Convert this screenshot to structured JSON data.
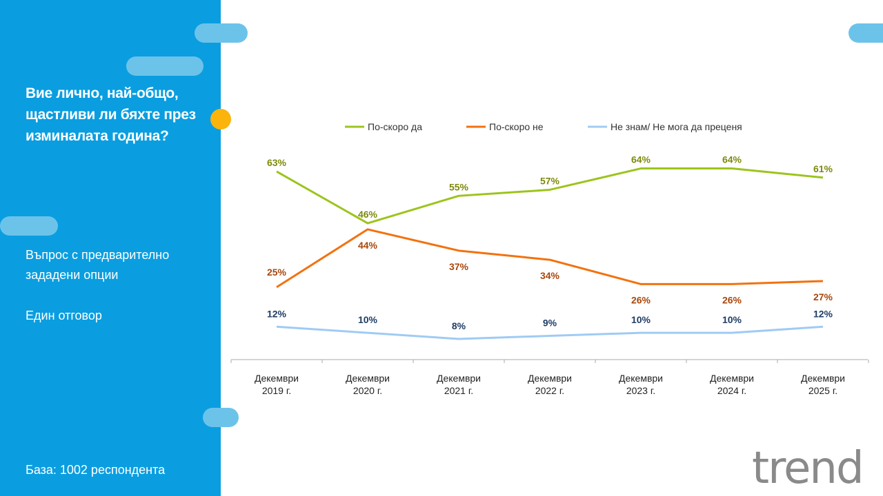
{
  "sidebar": {
    "question": "Вие лично, най-общо, щастливи ли бяхте през изминалата година?",
    "note1": "Въпрос с предварително зададени опции",
    "note2": "Един отговор",
    "base": "База:  1002 респондента"
  },
  "logo": "trend",
  "colors": {
    "sidebar": "#0a9ee0",
    "accent": "#fbb40b"
  },
  "chart_data": {
    "type": "line",
    "categories": [
      "Декември 2019 г.",
      "Декември 2020 г.",
      "Декември 2021 г.",
      "Декември 2022 г.",
      "Декември 2023 г.",
      "Декември 2024 г.",
      "Декември 2025 г."
    ],
    "series": [
      {
        "name": "По-скоро да",
        "color": "#9cc41c",
        "label_color": "#7d8a0c",
        "values": [
          63,
          46,
          55,
          57,
          64,
          64,
          61
        ]
      },
      {
        "name": "По-скоро не",
        "color": "#f2720f",
        "label_color": "#a8470c",
        "values": [
          25,
          44,
          37,
          34,
          26,
          26,
          27
        ]
      },
      {
        "name": "Не знам/ Не мога да преценя",
        "color": "#9fcbf4",
        "label_color": "#1f3d66",
        "values": [
          12,
          10,
          8,
          9,
          10,
          10,
          12
        ]
      }
    ],
    "unit": "%",
    "legend": "top",
    "grid": false,
    "ylim": [
      0,
      70
    ]
  }
}
